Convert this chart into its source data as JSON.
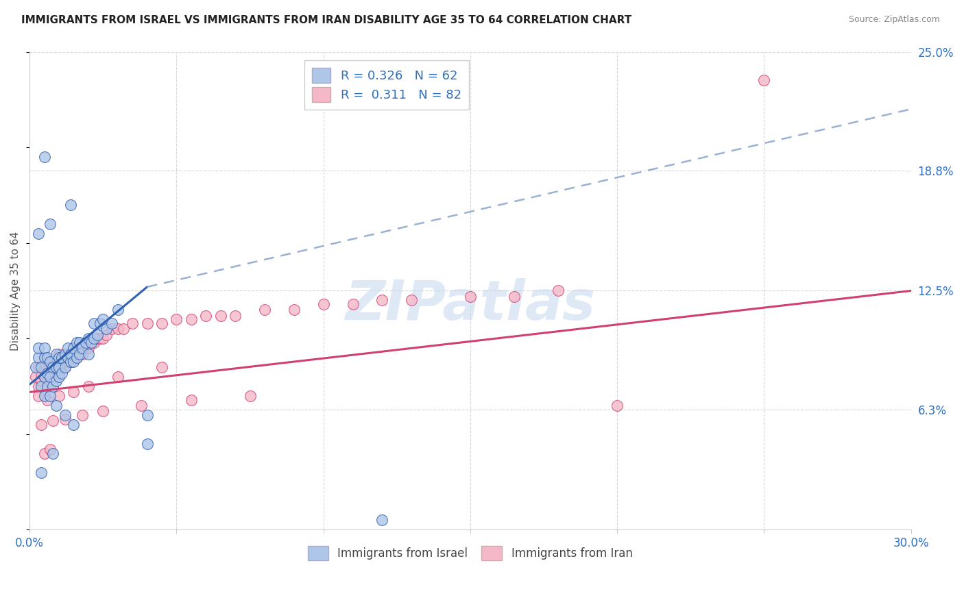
{
  "title": "IMMIGRANTS FROM ISRAEL VS IMMIGRANTS FROM IRAN DISABILITY AGE 35 TO 64 CORRELATION CHART",
  "source": "Source: ZipAtlas.com",
  "ylabel": "Disability Age 35 to 64",
  "xlim": [
    0.0,
    0.3
  ],
  "ylim": [
    0.0,
    0.25
  ],
  "y_tick_labels_right": [
    "6.3%",
    "12.5%",
    "18.8%",
    "25.0%"
  ],
  "y_ticks_right": [
    0.063,
    0.125,
    0.188,
    0.25
  ],
  "grid_color": "#d8d8d8",
  "israel_color": "#aec6e8",
  "iran_color": "#f4b8c8",
  "israel_line_color": "#3060b0",
  "iran_line_color": "#d04070",
  "israel_R": 0.326,
  "israel_N": 62,
  "iran_R": 0.311,
  "iran_N": 82,
  "israel_scatter_x": [
    0.002,
    0.003,
    0.003,
    0.004,
    0.004,
    0.005,
    0.005,
    0.005,
    0.005,
    0.006,
    0.006,
    0.006,
    0.007,
    0.007,
    0.007,
    0.008,
    0.008,
    0.009,
    0.009,
    0.009,
    0.01,
    0.01,
    0.01,
    0.011,
    0.011,
    0.012,
    0.012,
    0.013,
    0.013,
    0.014,
    0.014,
    0.015,
    0.015,
    0.016,
    0.016,
    0.017,
    0.017,
    0.018,
    0.019,
    0.02,
    0.02,
    0.021,
    0.022,
    0.022,
    0.023,
    0.024,
    0.025,
    0.026,
    0.028,
    0.03,
    0.003,
    0.005,
    0.007,
    0.009,
    0.012,
    0.015,
    0.04,
    0.04,
    0.004,
    0.008,
    0.014,
    0.12
  ],
  "israel_scatter_y": [
    0.085,
    0.09,
    0.095,
    0.075,
    0.085,
    0.07,
    0.08,
    0.09,
    0.095,
    0.075,
    0.082,
    0.09,
    0.07,
    0.08,
    0.088,
    0.075,
    0.085,
    0.078,
    0.085,
    0.092,
    0.08,
    0.085,
    0.09,
    0.082,
    0.09,
    0.085,
    0.092,
    0.09,
    0.095,
    0.088,
    0.092,
    0.088,
    0.095,
    0.09,
    0.098,
    0.092,
    0.098,
    0.095,
    0.098,
    0.092,
    0.1,
    0.098,
    0.1,
    0.108,
    0.102,
    0.108,
    0.11,
    0.105,
    0.108,
    0.115,
    0.155,
    0.195,
    0.16,
    0.065,
    0.06,
    0.055,
    0.06,
    0.045,
    0.03,
    0.04,
    0.17,
    0.005
  ],
  "iran_scatter_x": [
    0.002,
    0.003,
    0.003,
    0.004,
    0.004,
    0.005,
    0.005,
    0.005,
    0.006,
    0.006,
    0.006,
    0.007,
    0.007,
    0.008,
    0.008,
    0.009,
    0.009,
    0.01,
    0.01,
    0.01,
    0.011,
    0.011,
    0.012,
    0.012,
    0.013,
    0.013,
    0.014,
    0.014,
    0.015,
    0.015,
    0.016,
    0.016,
    0.017,
    0.018,
    0.018,
    0.019,
    0.02,
    0.021,
    0.022,
    0.023,
    0.024,
    0.025,
    0.026,
    0.028,
    0.03,
    0.032,
    0.035,
    0.04,
    0.045,
    0.05,
    0.055,
    0.06,
    0.065,
    0.07,
    0.08,
    0.09,
    0.1,
    0.11,
    0.12,
    0.13,
    0.15,
    0.165,
    0.18,
    0.003,
    0.006,
    0.01,
    0.015,
    0.02,
    0.03,
    0.045,
    0.004,
    0.008,
    0.012,
    0.018,
    0.025,
    0.038,
    0.055,
    0.075,
    0.005,
    0.007,
    0.25,
    0.2
  ],
  "iran_scatter_y": [
    0.08,
    0.075,
    0.085,
    0.078,
    0.082,
    0.08,
    0.085,
    0.09,
    0.078,
    0.082,
    0.088,
    0.08,
    0.085,
    0.082,
    0.088,
    0.082,
    0.088,
    0.082,
    0.088,
    0.092,
    0.085,
    0.09,
    0.085,
    0.09,
    0.088,
    0.092,
    0.088,
    0.092,
    0.09,
    0.095,
    0.09,
    0.095,
    0.092,
    0.092,
    0.095,
    0.095,
    0.095,
    0.098,
    0.098,
    0.1,
    0.1,
    0.1,
    0.102,
    0.105,
    0.105,
    0.105,
    0.108,
    0.108,
    0.108,
    0.11,
    0.11,
    0.112,
    0.112,
    0.112,
    0.115,
    0.115,
    0.118,
    0.118,
    0.12,
    0.12,
    0.122,
    0.122,
    0.125,
    0.07,
    0.068,
    0.07,
    0.072,
    0.075,
    0.08,
    0.085,
    0.055,
    0.057,
    0.058,
    0.06,
    0.062,
    0.065,
    0.068,
    0.07,
    0.04,
    0.042,
    0.235,
    0.065
  ]
}
